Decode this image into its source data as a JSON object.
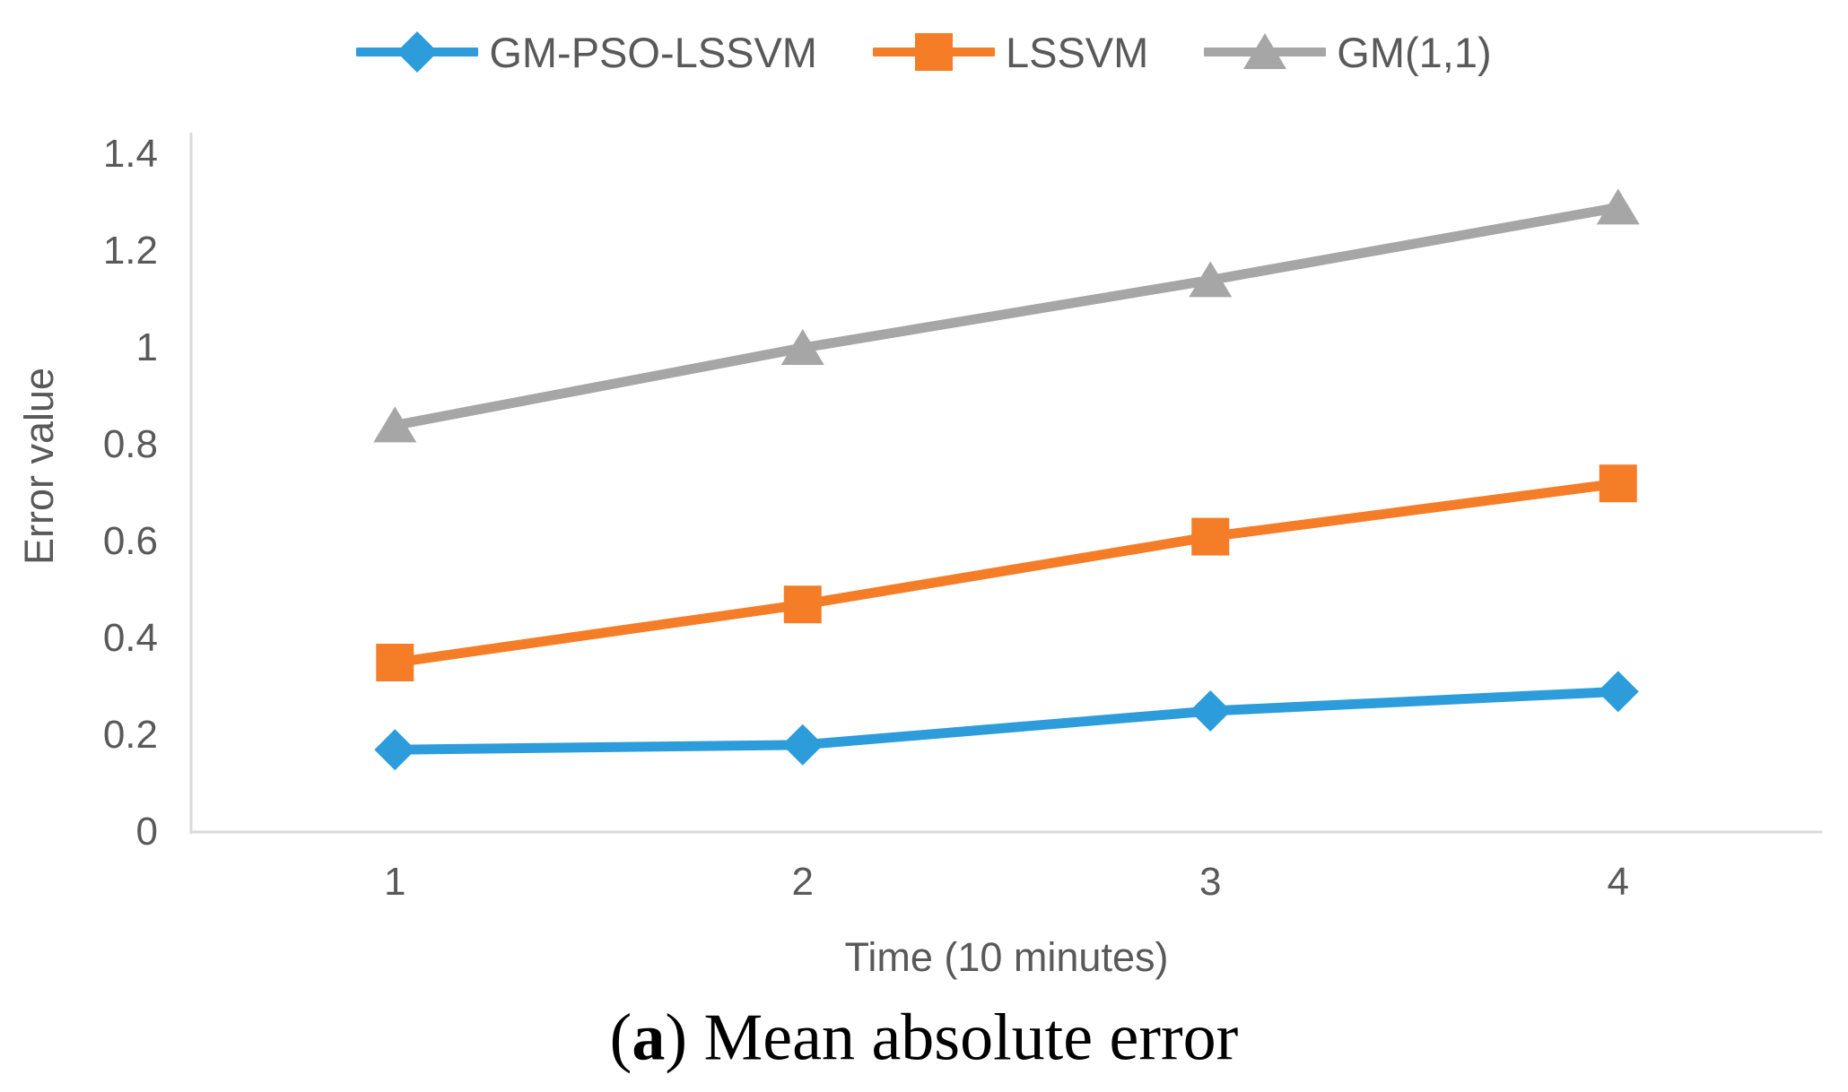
{
  "legend": {
    "items": [
      {
        "label": "GM-PSO-LSSVM",
        "marker": "diamond"
      },
      {
        "label": "LSSVM",
        "marker": "square"
      },
      {
        "label": "GM(1,1)",
        "marker": "triangle"
      }
    ]
  },
  "chart_data": {
    "type": "line",
    "categories": [
      "1",
      "2",
      "3",
      "4"
    ],
    "series": [
      {
        "name": "GM-PSO-LSSVM",
        "marker": "diamond",
        "color": "#2D9CDB",
        "values": [
          0.17,
          0.18,
          0.25,
          0.29
        ]
      },
      {
        "name": "LSSVM",
        "marker": "square",
        "color": "#F57D28",
        "values": [
          0.35,
          0.47,
          0.61,
          0.72
        ]
      },
      {
        "name": "GM(1,1)",
        "marker": "triangle",
        "color": "#A6A6A6",
        "values": [
          0.84,
          1.0,
          1.14,
          1.29
        ]
      }
    ],
    "title": "",
    "xlabel": "Time (10 minutes)",
    "ylabel": "Error value",
    "ylim": [
      0,
      1.4
    ],
    "y_ticks": [
      0,
      0.2,
      0.4,
      0.6,
      0.8,
      1,
      1.2,
      1.4
    ],
    "y_tick_labels": [
      "0",
      "0.2",
      "0.4",
      "0.6",
      "0.8",
      "1",
      "1.2",
      "1.4"
    ],
    "grid": false,
    "legend_position": "top"
  },
  "caption": {
    "prefix": "(",
    "letter": "a",
    "suffix": ") Mean absolute error"
  },
  "colors": {
    "axis_line": "#D9D9D9",
    "tick_text": "#595959",
    "legend_text": "#595959",
    "caption_text": "#000000"
  }
}
